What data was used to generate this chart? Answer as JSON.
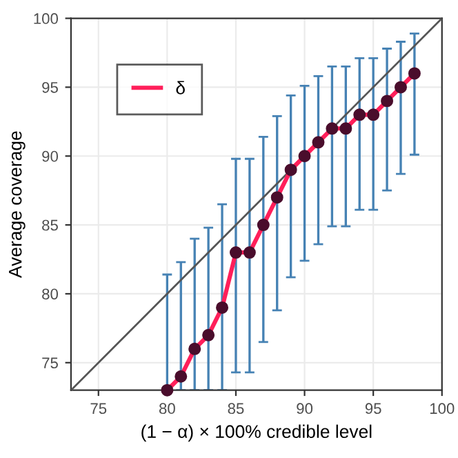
{
  "chart_data": {
    "type": "line",
    "xlabel": "(1 − α) × 100% credible level",
    "ylabel": "Average coverage",
    "x": [
      80,
      81,
      82,
      83,
      84,
      85,
      86,
      87,
      88,
      89,
      90,
      91,
      92,
      93,
      94,
      95,
      96,
      97,
      98
    ],
    "series": [
      {
        "x": [
          73,
          100
        ],
        "values": [
          73,
          100
        ],
        "color": "#555555"
      },
      {
        "name": "δ",
        "color": "#ff1f5a",
        "marker": "circle",
        "colors": [
          "#4a0d2c",
          "#4a0d2c",
          "#4a0d2c",
          "#4a0d2c",
          "#4a0d2c",
          "#4a0d2c",
          "#4a0d2c",
          "#4a0d2c",
          "#4a0d2c",
          "#4a0d2c",
          "#4a0d2c",
          "#4a0d2c",
          "#4a0d2c",
          "#4a0d2c",
          "#4a0d2c",
          "#4a0d2c",
          "#4a0d2c",
          "#4a0d2c",
          "#4a0d2c"
        ],
        "values": [
          73,
          74,
          76,
          77,
          79,
          83,
          83,
          85,
          87,
          89,
          90,
          91,
          92,
          92,
          93,
          93,
          94,
          95,
          96
        ],
        "errors": [
          [
            73,
            81.4
          ],
          [
            73,
            82.3
          ],
          [
            73,
            84.0
          ],
          [
            73,
            84.8
          ],
          [
            73,
            86.5
          ],
          [
            74.3,
            89.8
          ],
          [
            74.3,
            89.8
          ],
          [
            76.5,
            91.4
          ],
          [
            78.8,
            92.9
          ],
          [
            81.2,
            94.4
          ],
          [
            82.4,
            95.1
          ],
          [
            83.6,
            95.8
          ],
          [
            84.9,
            96.5
          ],
          [
            84.9,
            96.5
          ],
          [
            86.1,
            97.1
          ],
          [
            86.1,
            97.1
          ],
          [
            87.5,
            97.8
          ],
          [
            88.7,
            98.3
          ],
          [
            90.1,
            98.9
          ]
        ]
      }
    ],
    "xlim": [
      73,
      100
    ],
    "ylim": [
      73,
      100
    ],
    "xticks": [
      75,
      80,
      85,
      90,
      95,
      100
    ],
    "yticks": [
      75,
      80,
      85,
      90,
      95,
      100
    ],
    "grid": true,
    "legend": "top left"
  }
}
